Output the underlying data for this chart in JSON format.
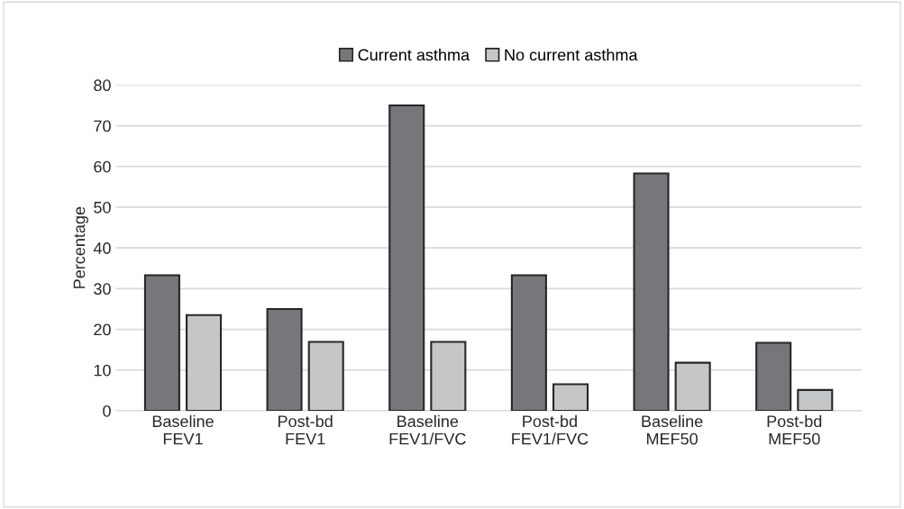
{
  "chart_data": {
    "type": "bar",
    "ylabel": "Percentage",
    "categories": [
      "Baseline\nFEV1",
      "Post-bd\nFEV1",
      "Baseline\nFEV1/FVC",
      "Post-bd\nFEV1/FVC",
      "Baseline\nMEF50",
      "Post-bd\nMEF50"
    ],
    "series": [
      {
        "name": "Current asthma",
        "color": "#76777b",
        "values": [
          33.3,
          25.0,
          75.0,
          33.3,
          58.3,
          16.7
        ]
      },
      {
        "name": "No current asthma",
        "color": "#c5c6c8",
        "values": [
          23.5,
          16.9,
          16.9,
          6.5,
          11.8,
          5.1
        ]
      }
    ],
    "ylim": [
      0,
      80
    ],
    "yticks": [
      0,
      10,
      20,
      30,
      40,
      50,
      60,
      70,
      80
    ],
    "grid": "y",
    "legend": "top"
  }
}
